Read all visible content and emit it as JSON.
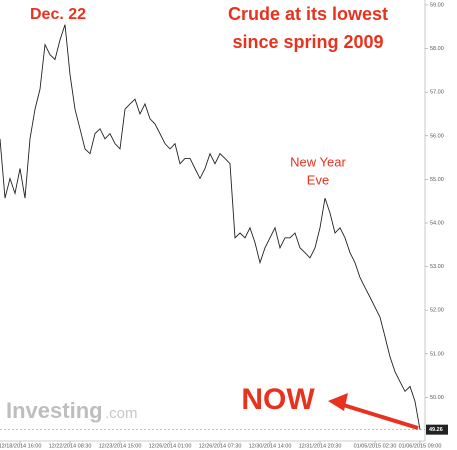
{
  "chart_data": {
    "type": "line",
    "title_lines": [
      "Crude at its lowest",
      "since spring 2009"
    ],
    "annotations": {
      "peak": "Dec. 22",
      "new_year": [
        "New Year",
        "Eve"
      ],
      "now": "NOW"
    },
    "watermark": {
      "brand": "Investing",
      "suffix": ".com"
    },
    "series": [
      {
        "color": "#222222",
        "values": [
          55.93,
          54.57,
          55.02,
          54.68,
          55.25,
          54.57,
          55.93,
          56.61,
          57.07,
          58.09,
          57.86,
          57.75,
          58.2,
          58.55,
          57.41,
          56.61,
          56.16,
          55.7,
          55.59,
          56.05,
          56.16,
          55.93,
          56.05,
          55.82,
          55.7,
          56.61,
          56.73,
          56.84,
          56.5,
          56.73,
          56.39,
          56.27,
          56.05,
          55.82,
          55.7,
          55.82,
          55.36,
          55.48,
          55.48,
          55.25,
          55.02,
          55.25,
          55.59,
          55.36,
          55.59,
          55.48,
          55.36,
          53.66,
          53.77,
          53.66,
          53.89,
          53.55,
          53.09,
          53.43,
          53.66,
          53.89,
          53.43,
          53.66,
          53.66,
          53.77,
          53.43,
          53.32,
          53.2,
          53.43,
          53.89,
          54.57,
          54.23,
          53.77,
          53.89,
          53.66,
          53.32,
          53.09,
          52.75,
          52.52,
          52.3,
          52.07,
          51.84,
          51.39,
          50.93,
          50.59,
          50.36,
          50.14,
          50.25,
          49.91,
          49.26
        ]
      }
    ],
    "xlim": [
      0,
      85
    ],
    "xticks": [
      {
        "value": 4,
        "label": "12/18/2014 16:00"
      },
      {
        "value": 14,
        "label": "12/22/2014 08:30"
      },
      {
        "value": 24,
        "label": "12/23/2014 15:00"
      },
      {
        "value": 34,
        "label": "12/26/2014 01:00"
      },
      {
        "value": 44,
        "label": "12/26/2014 07:30"
      },
      {
        "value": 54,
        "label": "12/30/2014 14:00"
      },
      {
        "value": 64,
        "label": "12/31/2014 20:30"
      },
      {
        "value": 75,
        "label": "01/05/2015 02:30"
      },
      {
        "value": 84,
        "label": "01/06/2015 09:00"
      }
    ],
    "ylim": [
      49,
      59
    ],
    "yticks": [
      {
        "value": 50,
        "label": "50.00"
      },
      {
        "value": 51,
        "label": "51.00"
      },
      {
        "value": 52,
        "label": "52.00"
      },
      {
        "value": 53,
        "label": "53.00"
      },
      {
        "value": 54,
        "label": "54.00"
      },
      {
        "value": 55,
        "label": "55.00"
      },
      {
        "value": 56,
        "label": "56.00"
      },
      {
        "value": 57,
        "label": "57.00"
      },
      {
        "value": 58,
        "label": "58.00"
      },
      {
        "value": 59,
        "label": "59.00"
      }
    ],
    "grid": false,
    "annotation_color": "#e8321e"
  }
}
